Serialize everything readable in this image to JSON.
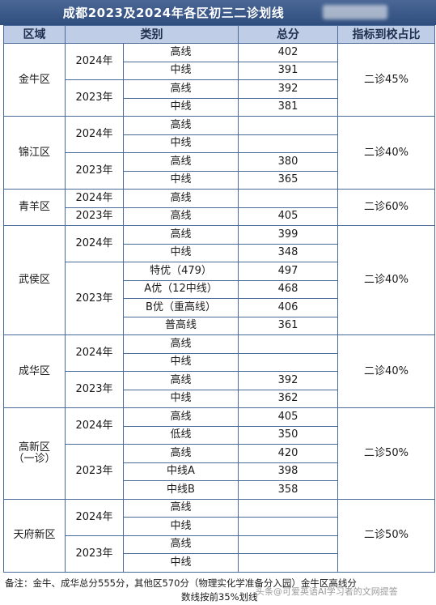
{
  "title": "成都2023及2024年各区初三二诊划线",
  "headers": {
    "region": "区域",
    "category": "类别",
    "score": "总分",
    "ratio": "指标到校占比"
  },
  "regions": [
    {
      "name": "金牛区",
      "ratio": "二诊45%",
      "years": [
        {
          "year": "2024年",
          "rows": [
            {
              "cat": "高线",
              "score": "402"
            },
            {
              "cat": "中线",
              "score": "391"
            }
          ]
        },
        {
          "year": "2023年",
          "rows": [
            {
              "cat": "高线",
              "score": "392"
            },
            {
              "cat": "中线",
              "score": "381"
            }
          ]
        }
      ]
    },
    {
      "name": "锦江区",
      "ratio": "二诊40%",
      "years": [
        {
          "year": "2024年",
          "rows": [
            {
              "cat": "高线",
              "score": ""
            },
            {
              "cat": "中线",
              "score": ""
            }
          ]
        },
        {
          "year": "2023年",
          "rows": [
            {
              "cat": "高线",
              "score": "380"
            },
            {
              "cat": "中线",
              "score": "365"
            }
          ]
        }
      ]
    },
    {
      "name": "青羊区",
      "ratio": "二诊60%",
      "years": [
        {
          "year": "2024年",
          "rows": [
            {
              "cat": "高线",
              "score": ""
            }
          ]
        },
        {
          "year": "2023年",
          "rows": [
            {
              "cat": "高线",
              "score": "405"
            }
          ]
        }
      ]
    },
    {
      "name": "武侯区",
      "ratio": "二诊40%",
      "years": [
        {
          "year": "2024年",
          "rows": [
            {
              "cat": "高线",
              "score": "399"
            },
            {
              "cat": "中线",
              "score": "348"
            }
          ]
        },
        {
          "year": "2023年",
          "rows": [
            {
              "cat": "特优（479）",
              "score": "497"
            },
            {
              "cat": "A优（12中线）",
              "score": "468"
            },
            {
              "cat": "B优（重高线）",
              "score": "406"
            },
            {
              "cat": "普高线",
              "score": "361"
            }
          ]
        }
      ]
    },
    {
      "name": "成华区",
      "ratio": "二诊40%",
      "years": [
        {
          "year": "2024年",
          "rows": [
            {
              "cat": "高线",
              "score": ""
            },
            {
              "cat": "中线",
              "score": ""
            }
          ]
        },
        {
          "year": "2023年",
          "rows": [
            {
              "cat": "高线",
              "score": "392"
            },
            {
              "cat": "中线",
              "score": "362"
            }
          ]
        }
      ]
    },
    {
      "name": "高新区\n（一诊）",
      "ratio": "二诊50%",
      "years": [
        {
          "year": "2024年",
          "rows": [
            {
              "cat": "高线",
              "score": "405"
            },
            {
              "cat": "低线",
              "score": "350"
            }
          ]
        },
        {
          "year": "2023年",
          "rows": [
            {
              "cat": "高线",
              "score": "420"
            },
            {
              "cat": "中线A",
              "score": "398"
            },
            {
              "cat": "中线B",
              "score": "358"
            }
          ]
        }
      ]
    },
    {
      "name": "天府新区",
      "ratio": "二诊50%",
      "years": [
        {
          "year": "2024年",
          "rows": [
            {
              "cat": "高线",
              "score": ""
            },
            {
              "cat": "中线",
              "score": ""
            }
          ]
        },
        {
          "year": "2023年",
          "rows": [
            {
              "cat": "高线",
              "score": ""
            },
            {
              "cat": "中线",
              "score": ""
            }
          ]
        }
      ]
    }
  ],
  "footnote": {
    "line1": "备注：金牛、成华总分555分，其他区570分（物理实化学准备分入园）金牛区高线分",
    "line2": "数线按前35%划线"
  },
  "watermark": "头条@可爱英语AI学习者的文网提答"
}
